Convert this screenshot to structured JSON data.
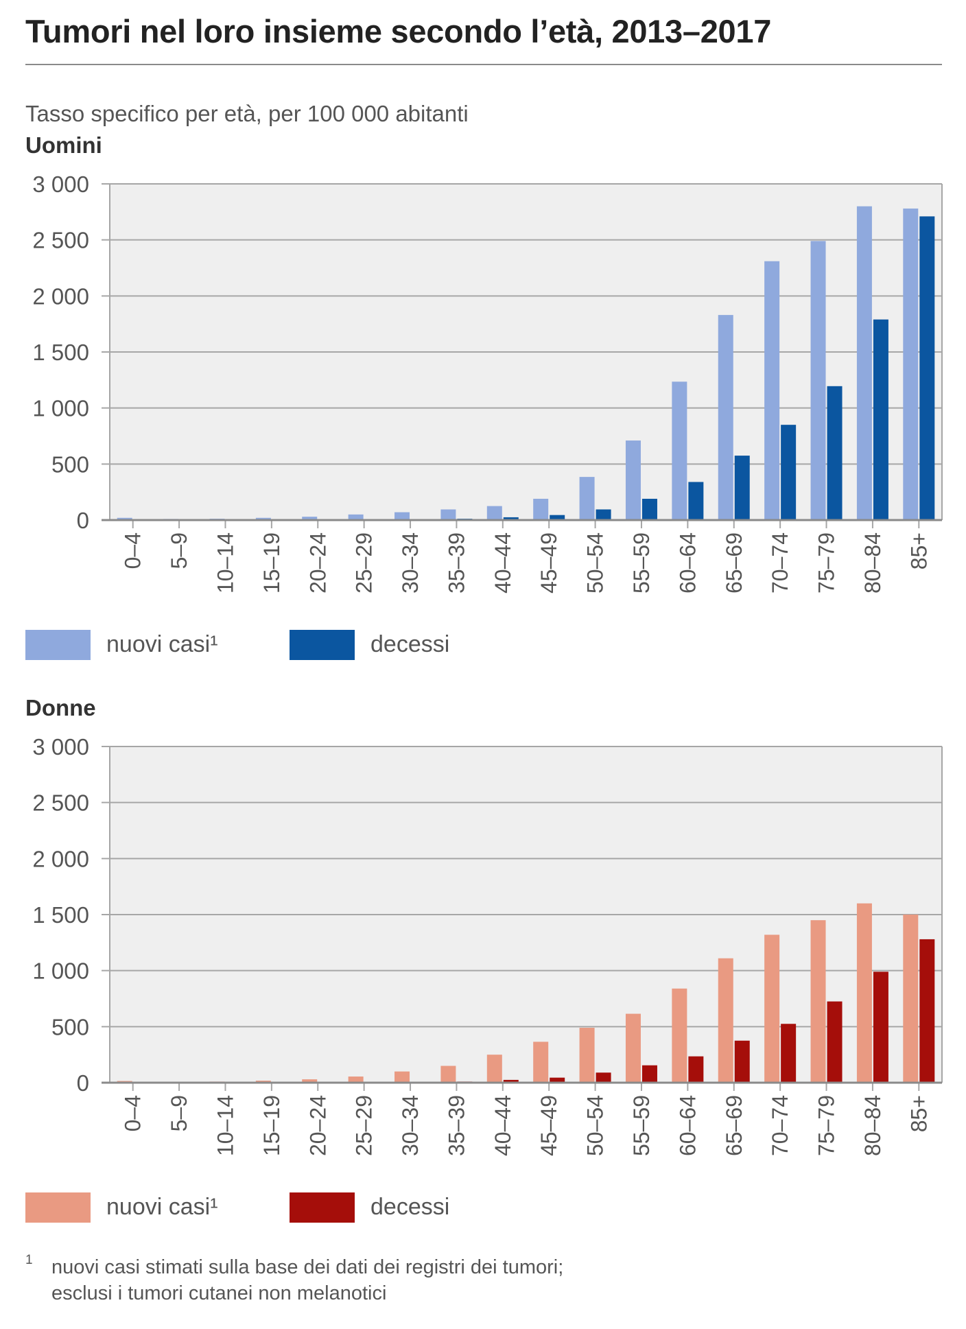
{
  "title": "Tumori nel loro insieme secondo l’età, 2013–2017",
  "subtitle": "Tasso specifico per età, per 100 000 abitanti",
  "legend_men": {
    "new_cases": "nuovi casi¹",
    "deaths": "decessi"
  },
  "legend_women": {
    "new_cases": "nuovi casi¹",
    "deaths": "decessi"
  },
  "footnote": {
    "mark": "1",
    "line1": "nuovi casi stimati sulla base dei dati dei registri dei tumori;",
    "line2": "esclusi i tumori cutanei non melanotici"
  },
  "colors": {
    "men_new": "#8fa9dd",
    "men_deaths": "#0b56a0",
    "women_new": "#e99a82",
    "women_deaths": "#a50e0a",
    "plot_bg": "#efefef",
    "grid": "#a6a6a6"
  },
  "chart_data": [
    {
      "type": "bar",
      "panel": "Uomini",
      "title": "Uomini",
      "ylim": [
        0,
        3000
      ],
      "yticks": [
        0,
        500,
        1000,
        1500,
        2000,
        2500,
        3000
      ],
      "ytick_labels": [
        "0",
        "500",
        "1 000",
        "1 500",
        "2 000",
        "2 500",
        "3 000"
      ],
      "grid": true,
      "legend_position": "bottom-left",
      "categories": [
        "0–4",
        "5–9",
        "10–14",
        "15–19",
        "20–24",
        "25–29",
        "30–34",
        "35–39",
        "40–44",
        "45–49",
        "50–54",
        "55–59",
        "60–64",
        "65–69",
        "70–74",
        "75–79",
        "80–84",
        "85+"
      ],
      "series": [
        {
          "name": "nuovi casi¹",
          "color": "#8fa9dd",
          "values": [
            20,
            10,
            12,
            20,
            30,
            50,
            70,
            95,
            125,
            190,
            385,
            710,
            1235,
            1830,
            2310,
            2490,
            2800,
            2780
          ]
        },
        {
          "name": "decessi",
          "color": "#0b56a0",
          "values": [
            3,
            2,
            2,
            3,
            4,
            5,
            8,
            12,
            25,
            45,
            95,
            190,
            340,
            575,
            850,
            1195,
            1790,
            2710
          ]
        }
      ]
    },
    {
      "type": "bar",
      "panel": "Donne",
      "title": "Donne",
      "ylim": [
        0,
        3000
      ],
      "yticks": [
        0,
        500,
        1000,
        1500,
        2000,
        2500,
        3000
      ],
      "ytick_labels": [
        "0",
        "500",
        "1 000",
        "1 500",
        "2 000",
        "2 500",
        "3 000"
      ],
      "grid": true,
      "legend_position": "bottom-left",
      "categories": [
        "0–4",
        "5–9",
        "10–14",
        "15–19",
        "20–24",
        "25–29",
        "30–34",
        "35–39",
        "40–44",
        "45–49",
        "50–54",
        "55–59",
        "60–64",
        "65–69",
        "70–74",
        "75–79",
        "80–84",
        "85+"
      ],
      "series": [
        {
          "name": "nuovi casi¹",
          "color": "#e99a82",
          "values": [
            15,
            8,
            10,
            18,
            30,
            55,
            100,
            150,
            250,
            365,
            490,
            615,
            840,
            1110,
            1320,
            1450,
            1600,
            1500
          ]
        },
        {
          "name": "decessi",
          "color": "#a50e0a",
          "values": [
            2,
            2,
            2,
            3,
            4,
            5,
            7,
            10,
            25,
            45,
            90,
            155,
            235,
            375,
            525,
            725,
            990,
            1280
          ]
        }
      ]
    }
  ]
}
